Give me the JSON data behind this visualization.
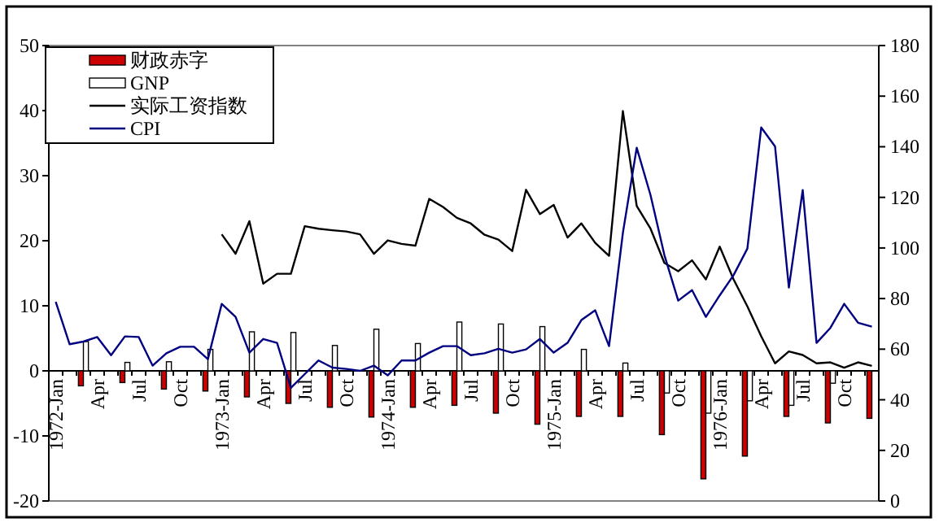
{
  "chart_data": {
    "type": "bar",
    "categories": [
      "1972-Jan",
      null,
      null,
      "Apr",
      null,
      null,
      "Jul",
      null,
      null,
      "Oct",
      null,
      null,
      "1973-Jan",
      null,
      null,
      "Apr",
      null,
      null,
      "Jul",
      null,
      null,
      "Oct",
      null,
      null,
      "1974-Jan",
      null,
      null,
      "Apr",
      null,
      null,
      "Jul",
      null,
      null,
      "Oct",
      null,
      null,
      "1975-Jan",
      null,
      null,
      "Apr",
      null,
      null,
      "Jul",
      null,
      null,
      "Oct",
      null,
      null,
      "1976-Jan",
      null,
      null,
      "Apr",
      null,
      null,
      "Jul",
      null,
      null,
      "Oct",
      null,
      null
    ],
    "series": [
      {
        "name": "财政赤字",
        "color": "#cc0000",
        "values": [
          null,
          null,
          -2.3,
          null,
          null,
          -1.8,
          null,
          null,
          -2.8,
          null,
          null,
          -3.1,
          null,
          null,
          -4.0,
          null,
          null,
          -5.0,
          null,
          null,
          -5.6,
          null,
          null,
          -7.1,
          null,
          null,
          -5.6,
          null,
          null,
          -5.3,
          null,
          null,
          -6.5,
          null,
          null,
          -8.2,
          null,
          null,
          -7.0,
          null,
          null,
          -7.0,
          null,
          null,
          -9.8,
          null,
          null,
          -16.6,
          null,
          null,
          -13.1,
          null,
          null,
          -7.0,
          null,
          null,
          -8.0,
          null,
          null,
          -7.3
        ]
      },
      {
        "name": "GNP",
        "color": "#ffffff",
        "values": [
          null,
          null,
          4.5,
          null,
          null,
          1.3,
          null,
          null,
          1.4,
          null,
          null,
          3.3,
          null,
          null,
          6.0,
          null,
          null,
          5.9,
          null,
          null,
          3.9,
          null,
          null,
          6.4,
          null,
          null,
          4.2,
          null,
          null,
          7.5,
          null,
          null,
          7.2,
          null,
          null,
          6.8,
          null,
          null,
          3.3,
          null,
          null,
          1.2,
          null,
          null,
          -3.4,
          null,
          null,
          -6.5,
          null,
          null,
          -4.6,
          null,
          null,
          -5.3,
          null,
          null,
          -1.9,
          null,
          null,
          null
        ]
      },
      {
        "name": "实际工资指数",
        "type": "line",
        "axis": "y2",
        "color": "#000000",
        "values": [
          null,
          null,
          null,
          null,
          null,
          null,
          null,
          null,
          null,
          null,
          null,
          null,
          105.4,
          97.7,
          110.6,
          85.9,
          89.8,
          89.8,
          108.6,
          107.6,
          107,
          106.5,
          105.4,
          97.7,
          103,
          101.6,
          100.9,
          119.4,
          116.2,
          111.9,
          109.7,
          105.2,
          103.3,
          98.8,
          123,
          113.4,
          117,
          104.1,
          109.7,
          102,
          96.9,
          154.1,
          116.6,
          107.6,
          94.1,
          90.8,
          95.1,
          87.6,
          100.5,
          87.6,
          76.9,
          65.1,
          54.4,
          59.1,
          57.7,
          54.4,
          54.8,
          52.7,
          54.8,
          53.4
        ]
      },
      {
        "name": "CPI",
        "type": "line",
        "color": "#000080",
        "values": [
          10.6,
          4.1,
          4.5,
          5.2,
          2.4,
          5.3,
          5.2,
          0.8,
          2.7,
          3.7,
          3.7,
          1.8,
          10.3,
          8.3,
          2.8,
          4.9,
          4.3,
          -2.6,
          -0.5,
          1.6,
          0.5,
          0.3,
          0,
          0.8,
          -0.7,
          1.6,
          1.6,
          2.8,
          3.8,
          3.8,
          2.4,
          2.7,
          3.4,
          2.8,
          3.3,
          4.9,
          2.8,
          4.3,
          7.8,
          9.3,
          3.8,
          21.2,
          34.3,
          27,
          17.8,
          10.8,
          12.4,
          8.3,
          11.6,
          14.7,
          18.8,
          37.4,
          34.5,
          12.8,
          27.8,
          4.3,
          6.6,
          10.3,
          7.4,
          6.8
        ]
      }
    ],
    "ylim": [
      -20,
      50
    ],
    "yticks": [
      -20,
      -10,
      0,
      10,
      20,
      30,
      40,
      50
    ],
    "y2lim": [
      0,
      180
    ],
    "y2ticks": [
      0,
      20,
      40,
      60,
      80,
      100,
      120,
      140,
      160,
      180
    ],
    "legend": "top left",
    "grid": false
  }
}
